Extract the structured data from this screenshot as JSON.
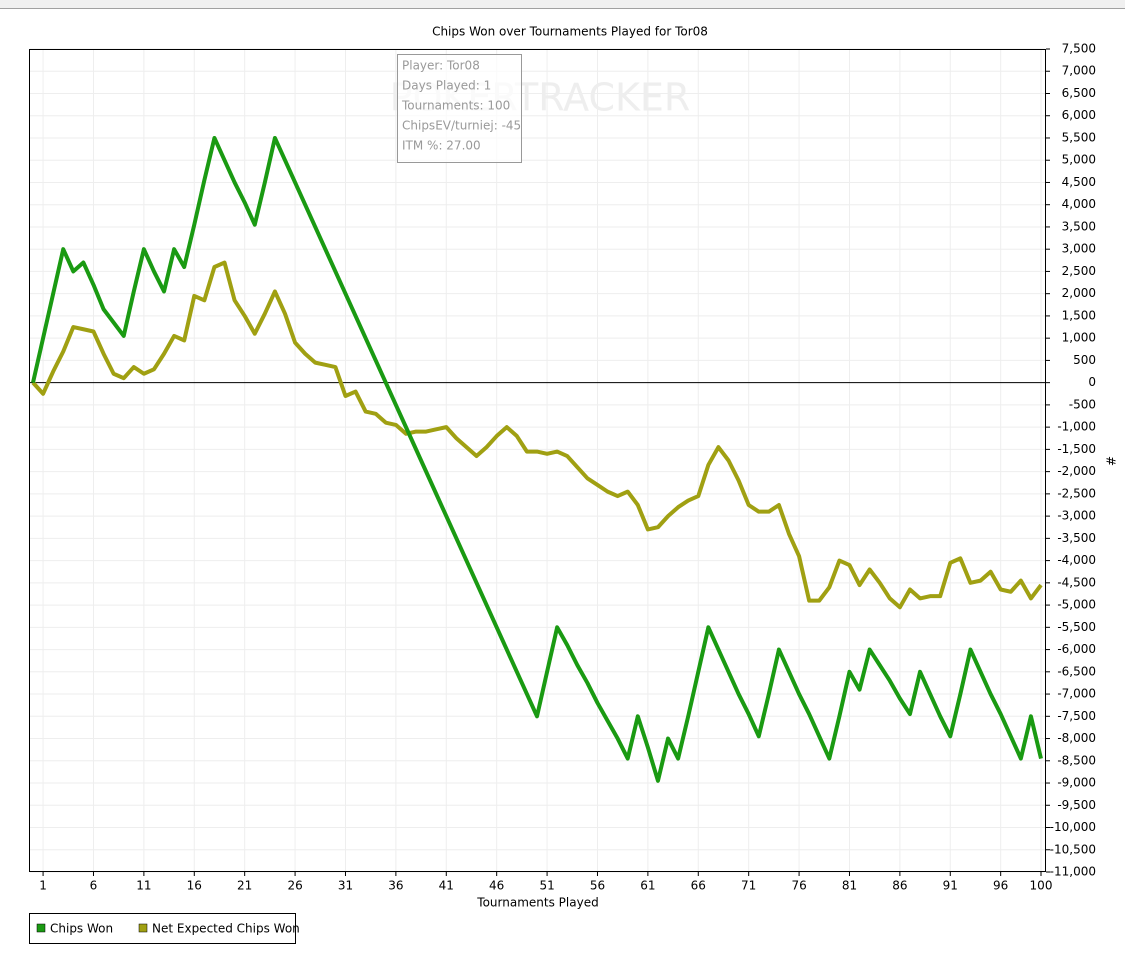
{
  "chart_data": {
    "type": "line",
    "title": "Chips Won over Tournaments Played for Tor08",
    "x_label": "Tournaments Played",
    "y_label": "#",
    "watermark": "POKERTRACKER",
    "info_box": [
      "Player: Tor08",
      "Days Played: 1",
      "Tournaments: 100",
      "ChipsEV/turniej: -45",
      "ITM %: 27.00"
    ],
    "grid": true,
    "legend": "bottom-left",
    "xlim": [
      0,
      100
    ],
    "xticks": [
      1,
      6,
      11,
      16,
      21,
      26,
      31,
      36,
      41,
      46,
      51,
      56,
      61,
      66,
      71,
      76,
      81,
      86,
      91,
      96,
      100
    ],
    "ylim": [
      -11000,
      7500
    ],
    "yticks": [
      {
        "value": 7500,
        "label": "7,500"
      },
      {
        "value": 7000,
        "label": "7,000"
      },
      {
        "value": 6500,
        "label": "6,500"
      },
      {
        "value": 6000,
        "label": "6,000"
      },
      {
        "value": 5500,
        "label": "5,500"
      },
      {
        "value": 5000,
        "label": "5,000"
      },
      {
        "value": 4500,
        "label": "4,500"
      },
      {
        "value": 4000,
        "label": "4,000"
      },
      {
        "value": 3500,
        "label": "3,500"
      },
      {
        "value": 3000,
        "label": "3,000"
      },
      {
        "value": 2500,
        "label": "2,500"
      },
      {
        "value": 2000,
        "label": "2,000"
      },
      {
        "value": 1500,
        "label": "1,500"
      },
      {
        "value": 1000,
        "label": "1,000"
      },
      500,
      0,
      -500,
      {
        "value": -1000,
        "label": "-1,000"
      },
      {
        "value": -1500,
        "label": "-1,500"
      },
      {
        "value": -2000,
        "label": "-2,000"
      },
      {
        "value": -2500,
        "label": "-2,500"
      },
      {
        "value": -3000,
        "label": "-3,000"
      },
      {
        "value": -3500,
        "label": "-3,500"
      },
      {
        "value": -4000,
        "label": "-4,000"
      },
      {
        "value": -4500,
        "label": "-4,500"
      },
      {
        "value": -5000,
        "label": "-5,000"
      },
      {
        "value": -5500,
        "label": "-5,500"
      },
      {
        "value": -6000,
        "label": "-6,000"
      },
      {
        "value": -6500,
        "label": "-6,500"
      },
      {
        "value": -7000,
        "label": "-7,000"
      },
      {
        "value": -7500,
        "label": "-7,500"
      },
      {
        "value": -8000,
        "label": "-8,000"
      },
      {
        "value": -8500,
        "label": "-8,500"
      },
      {
        "value": -9000,
        "label": "-9,000"
      },
      {
        "value": -9500,
        "label": "-9,500"
      },
      {
        "value": -10000,
        "label": "-10,000"
      },
      {
        "value": -10500,
        "label": "-10,500"
      },
      {
        "value": -11000,
        "label": "-11,000"
      }
    ],
    "x": [
      0,
      1,
      2,
      3,
      4,
      5,
      6,
      7,
      8,
      9,
      10,
      11,
      12,
      13,
      14,
      15,
      16,
      17,
      18,
      19,
      20,
      21,
      22,
      23,
      24,
      25,
      26,
      27,
      28,
      29,
      30,
      31,
      32,
      33,
      34,
      35,
      36,
      37,
      38,
      39,
      40,
      41,
      42,
      43,
      44,
      45,
      46,
      47,
      48,
      49,
      50,
      51,
      52,
      53,
      54,
      55,
      56,
      57,
      58,
      59,
      60,
      61,
      62,
      63,
      64,
      65,
      66,
      67,
      68,
      69,
      70,
      71,
      72,
      73,
      74,
      75,
      76,
      77,
      78,
      79,
      80,
      81,
      82,
      83,
      84,
      85,
      86,
      87,
      88,
      89,
      90,
      91,
      92,
      93,
      94,
      95,
      96,
      97,
      98,
      99,
      100
    ],
    "series": [
      {
        "name": "Chips Won",
        "color": "#1a9a12",
        "values": [
          0,
          1000,
          2000,
          3000,
          2500,
          2700,
          2200,
          1650,
          1350,
          1050,
          2050,
          3000,
          2500,
          2050,
          3000,
          2600,
          3550,
          4550,
          5500,
          5000,
          4500,
          4050,
          3550,
          4500,
          5500,
          5000,
          4500,
          4000,
          3500,
          3000,
          2500,
          2000,
          1500,
          1000,
          500,
          0,
          -500,
          -1000,
          -1500,
          -2000,
          -2500,
          -3000,
          -3500,
          -4000,
          -4500,
          -5000,
          -5500,
          -6000,
          -6500,
          -7000,
          -7500,
          -6500,
          -5500,
          -5900,
          -6350,
          -6750,
          -7200,
          -7600,
          -8000,
          -8450,
          -7500,
          -8200,
          -8950,
          -8000,
          -8450,
          -7500,
          -6500,
          -5500,
          -6000,
          -6500,
          -7000,
          -7450,
          -7950,
          -7000,
          -6000,
          -6500,
          -7000,
          -7450,
          -7950,
          -8450,
          -7500,
          -6500,
          -6900,
          -6000,
          -6350,
          -6700,
          -7100,
          -7450,
          -6500,
          -7000,
          -7500,
          -7950,
          -7000,
          -6000,
          -6500,
          -7000,
          -7450,
          -7950,
          -8450,
          -7500,
          -8450
        ]
      },
      {
        "name": "Net Expected Chips Won",
        "color": "#a0a012",
        "values": [
          0,
          -250,
          250,
          700,
          1250,
          1200,
          1150,
          650,
          200,
          100,
          350,
          200,
          300,
          650,
          1050,
          950,
          1950,
          1850,
          2600,
          2700,
          1850,
          1500,
          1100,
          1550,
          2050,
          1550,
          900,
          650,
          450,
          400,
          350,
          -300,
          -200,
          -650,
          -700,
          -900,
          -950,
          -1150,
          -1100,
          -1100,
          -1050,
          -1000,
          -1250,
          -1450,
          -1650,
          -1450,
          -1200,
          -1000,
          -1200,
          -1550,
          -1550,
          -1600,
          -1550,
          -1650,
          -1900,
          -2150,
          -2300,
          -2450,
          -2550,
          -2450,
          -2750,
          -3300,
          -3250,
          -3000,
          -2800,
          -2650,
          -2550,
          -1850,
          -1450,
          -1750,
          -2200,
          -2750,
          -2900,
          -2900,
          -2750,
          -3400,
          -3900,
          -4900,
          -4900,
          -4600,
          -4000,
          -4100,
          -4550,
          -4200,
          -4500,
          -4850,
          -5050,
          -4650,
          -4850,
          -4800,
          -4800,
          -4050,
          -3950,
          -4500,
          -4450,
          -4250,
          -4650,
          -4700,
          -4450,
          -4850,
          -4550
        ]
      }
    ]
  }
}
